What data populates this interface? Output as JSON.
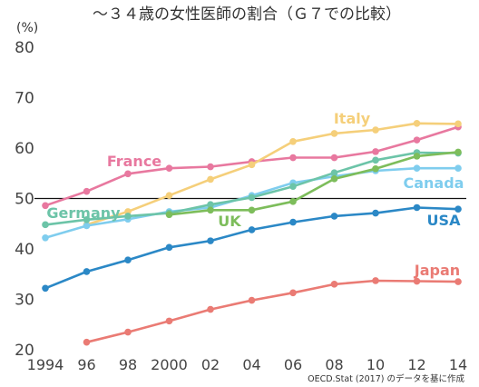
{
  "chart_data": {
    "type": "line",
    "title": "～３４歳の女性医師の割合（Ｇ７での比較）",
    "unit_label": "(%)",
    "source": "OECD.Stat (2017) のデータを基に作成",
    "xlabel": "",
    "ylabel": "",
    "ylim": [
      20,
      80
    ],
    "yticks": [
      20,
      30,
      40,
      50,
      60,
      70,
      80
    ],
    "reference_line": 50,
    "grid": false,
    "legend": "inline labels",
    "x": [
      1994,
      1996,
      1998,
      2000,
      2002,
      2004,
      2006,
      2008,
      2010,
      2012,
      2014
    ],
    "xtick_labels": [
      "1994",
      "96",
      "98",
      "2000",
      "02",
      "04",
      "06",
      "08",
      "10",
      "12",
      "14"
    ],
    "series": [
      {
        "name": "France",
        "color": "#e8789f",
        "values": [
          48.6,
          51.4,
          54.9,
          56.0,
          56.3,
          57.3,
          58.1,
          58.1,
          59.3,
          61.6,
          64.2
        ]
      },
      {
        "name": "Italy",
        "color": "#f5cf7a",
        "values": [
          null,
          44.8,
          47.4,
          50.6,
          53.8,
          56.7,
          61.3,
          62.9,
          63.6,
          64.9,
          64.8
        ]
      },
      {
        "name": "Canada",
        "color": "#7fcdee",
        "values": [
          42.2,
          44.6,
          45.9,
          47.4,
          48.2,
          50.6,
          53.1,
          54.4,
          55.5,
          56.0,
          56.0
        ]
      },
      {
        "name": "Germany",
        "color": "#6cc4a8",
        "values": [
          44.8,
          45.8,
          46.5,
          47.1,
          48.8,
          50.2,
          52.4,
          55.1,
          57.6,
          59.1,
          59.0
        ]
      },
      {
        "name": "UK",
        "color": "#7dbd5b",
        "values": [
          null,
          null,
          null,
          46.8,
          47.7,
          47.7,
          49.4,
          53.9,
          55.9,
          58.4,
          59.2
        ]
      },
      {
        "name": "USA",
        "color": "#2b88c6",
        "values": [
          32.2,
          35.5,
          37.8,
          40.3,
          41.6,
          43.8,
          45.3,
          46.5,
          47.1,
          48.2,
          47.9
        ]
      },
      {
        "name": "Japan",
        "color": "#ea7b74",
        "values": [
          null,
          21.5,
          23.5,
          25.7,
          28.0,
          29.8,
          31.3,
          33.0,
          33.7,
          33.6,
          33.5
        ]
      }
    ]
  }
}
